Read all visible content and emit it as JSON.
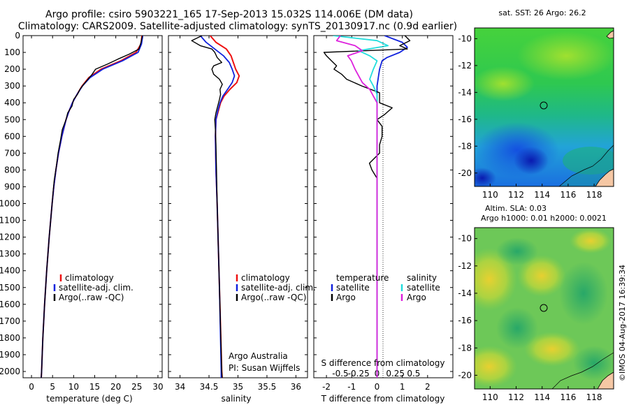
{
  "header": {
    "line1": "Argo profile: csiro 5903221_165 17-Sep-2013 15.032S 114.006E (DM data)",
    "line2": "Climatology: CARS2009. Satellite-adjusted climatology: synTS_20130917.nc (0.9d earlier)"
  },
  "colors": {
    "climatology": "#ee1111",
    "satellite": "#1122dd",
    "argo": "#000000",
    "argo_salinity": "#dd22dd",
    "satellite_salinity": "#22dddd",
    "land": "#f5c7a4"
  },
  "chart_data": [
    {
      "type": "line",
      "title": "Temperature profile",
      "xlabel": "temperature (deg C)",
      "ylabel": "",
      "xlim": [
        -2,
        31
      ],
      "ylim": [
        0,
        2080
      ],
      "xticks": [
        "0",
        "5",
        "10",
        "15",
        "20",
        "25",
        "30"
      ],
      "yticks": [
        "0",
        "100",
        "200",
        "300",
        "400",
        "500",
        "600",
        "700",
        "800",
        "900",
        "1000",
        "1100",
        "1200",
        "1300",
        "1400",
        "1500",
        "1600",
        "1700",
        "1800",
        "1900",
        "2000"
      ],
      "legend": {
        "entries": [
          "climatology",
          "satellite-adj. clim.",
          "Argo(..raw -QC)"
        ],
        "placement": "lower-center"
      },
      "series": [
        {
          "name": "climatology",
          "depth": [
            0,
            50,
            100,
            150,
            200,
            250,
            300,
            350,
            400,
            450,
            500,
            600,
            700,
            800,
            900,
            1000,
            1200,
            1400,
            1600,
            1800,
            2000,
            2050
          ],
          "values": [
            26.2,
            26.0,
            24.8,
            21.2,
            16.5,
            13.6,
            12.0,
            10.8,
            9.7,
            8.9,
            8.2,
            7.2,
            6.4,
            5.8,
            5.3,
            4.9,
            4.2,
            3.6,
            3.1,
            2.7,
            2.4,
            2.3
          ]
        },
        {
          "name": "satellite-adj. clim.",
          "depth": [
            0,
            50,
            100,
            150,
            200,
            250,
            300,
            350,
            400,
            450,
            500,
            600,
            700,
            800,
            900,
            1000,
            1200,
            1400,
            1600,
            1800,
            2000,
            2050
          ],
          "values": [
            26.4,
            26.1,
            25.3,
            21.6,
            16.9,
            13.9,
            12.1,
            10.8,
            9.7,
            8.9,
            8.2,
            7.2,
            6.4,
            5.8,
            5.3,
            4.9,
            4.2,
            3.6,
            3.1,
            2.7,
            2.4,
            2.3
          ]
        },
        {
          "name": "Argo(..raw -QC)",
          "depth": [
            0,
            40,
            80,
            110,
            140,
            170,
            200,
            230,
            260,
            290,
            320,
            350,
            380,
            420,
            460,
            500,
            560,
            620,
            700,
            780,
            860,
            940,
            1000,
            1200,
            1400,
            1600,
            1800,
            2000,
            2050
          ],
          "values": [
            26.3,
            26.0,
            25.5,
            23.2,
            20.5,
            18.0,
            15.2,
            14.4,
            13.4,
            12.4,
            11.5,
            10.9,
            10.0,
            9.6,
            8.6,
            8.2,
            7.3,
            6.9,
            6.3,
            5.9,
            5.4,
            5.1,
            4.9,
            4.2,
            3.6,
            3.1,
            2.7,
            2.4,
            2.3
          ]
        }
      ]
    },
    {
      "type": "line",
      "title": "Salinity profile",
      "xlabel": "salinity",
      "xlim": [
        33.8,
        36.2
      ],
      "ylim": [
        0,
        2080
      ],
      "xticks": [
        "34",
        "34.5",
        "35",
        "35.5",
        "36"
      ],
      "legend": {
        "entries": [
          "climatology",
          "satellite-adj. clim.",
          "Argo(..raw -QC)"
        ],
        "placement": "lower-center"
      },
      "annotation": [
        "Argo Australia",
        "PI: Susan Wijffels"
      ],
      "series": [
        {
          "name": "climatology",
          "depth": [
            0,
            40,
            80,
            120,
            160,
            200,
            240,
            280,
            320,
            360,
            400,
            450,
            500,
            600,
            800,
            1000,
            1500,
            2000,
            2050
          ],
          "values": [
            34.52,
            34.62,
            34.8,
            34.88,
            34.92,
            34.96,
            35.02,
            34.98,
            34.86,
            34.76,
            34.7,
            34.66,
            34.62,
            34.61,
            34.62,
            34.64,
            34.68,
            34.72,
            34.73
          ]
        },
        {
          "name": "satellite-adj. clim.",
          "depth": [
            0,
            40,
            80,
            120,
            160,
            200,
            240,
            280,
            320,
            360,
            400,
            450,
            500,
            600,
            800,
            1000,
            1500,
            2000,
            2050
          ],
          "values": [
            34.35,
            34.45,
            34.6,
            34.75,
            34.85,
            34.9,
            34.94,
            34.9,
            34.82,
            34.74,
            34.69,
            34.65,
            34.62,
            34.61,
            34.62,
            34.64,
            34.68,
            34.71,
            34.71
          ]
        },
        {
          "name": "Argo(..raw -QC)",
          "depth": [
            0,
            30,
            60,
            80,
            100,
            130,
            160,
            180,
            200,
            230,
            260,
            290,
            320,
            350,
            380,
            420,
            460,
            500,
            560,
            650,
            800,
            1000,
            1500,
            2000,
            2050
          ],
          "values": [
            34.38,
            34.2,
            34.35,
            34.55,
            34.6,
            34.64,
            34.72,
            34.58,
            34.55,
            34.58,
            34.68,
            34.73,
            34.69,
            34.7,
            34.68,
            34.65,
            34.62,
            34.6,
            34.61,
            34.62,
            34.63,
            34.64,
            34.68,
            34.72,
            34.73
          ]
        }
      ]
    },
    {
      "type": "line",
      "title": "Differences from climatology",
      "xlabel": "T difference from climatology",
      "xlabel_top": "S difference from climatology",
      "xlim": [
        -2.5,
        3.0
      ],
      "ylim": [
        0,
        2080
      ],
      "xticks": [
        "-2",
        "-1",
        "0",
        "1",
        "2"
      ],
      "sticks": [
        "-0.5",
        "-0.25",
        "0",
        "0.25",
        "0.5"
      ],
      "legend": {
        "temperature_title": "temperature",
        "salinity_title": "salinity",
        "temperature_entries": [
          "satellite",
          "Argo"
        ],
        "salinity_entries": [
          "satellite",
          "Argo"
        ],
        "placement": "center"
      },
      "series": [
        {
          "name": "temperature satellite",
          "depth": [
            0,
            40,
            70,
            100,
            130,
            150,
            200,
            250,
            300,
            350,
            400,
            500,
            600,
            800,
            1000,
            1500,
            2000,
            2050
          ],
          "values": [
            0.3,
            1.0,
            1.2,
            0.9,
            0.4,
            0.2,
            0.1,
            0.05,
            0.0,
            0.0,
            0.0,
            0.0,
            0.0,
            0.0,
            0.0,
            0.0,
            0.0,
            0.0
          ]
        },
        {
          "name": "temperature Argo",
          "depth": [
            0,
            30,
            60,
            80,
            100,
            120,
            150,
            180,
            200,
            230,
            260,
            300,
            340,
            400,
            430,
            470,
            500,
            540,
            600,
            650,
            700,
            760,
            800,
            850,
            900,
            1000,
            1200,
            1500,
            2000,
            2050
          ],
          "values": [
            1.1,
            1.3,
            0.9,
            1.2,
            -2.1,
            -2.0,
            -1.8,
            -1.6,
            -1.7,
            -1.4,
            -1.2,
            -0.6,
            0.1,
            0.1,
            0.6,
            0.3,
            0.0,
            0.2,
            0.2,
            0.1,
            0.1,
            -0.3,
            -0.2,
            0.0,
            0.0,
            0.0,
            0.0,
            0.0,
            0.0,
            0.0
          ]
        },
        {
          "name": "salinity satellite",
          "depth": [
            0,
            30,
            60,
            90,
            120,
            150,
            200,
            260,
            300,
            350,
            400,
            500,
            700,
            1000,
            1500,
            2000,
            2050
          ],
          "values": [
            -0.6,
            0.0,
            0.15,
            -0.25,
            -0.1,
            0.0,
            -0.05,
            -0.1,
            -0.05,
            0.0,
            0.0,
            0.0,
            0.0,
            0.0,
            0.0,
            0.0,
            0.0
          ]
        },
        {
          "name": "salinity Argo",
          "depth": [
            0,
            30,
            60,
            90,
            120,
            150,
            200,
            240,
            280,
            320,
            360,
            400,
            500,
            700,
            1000,
            1500,
            2000,
            2050
          ],
          "values": [
            -0.5,
            -0.55,
            -0.3,
            -0.2,
            -0.4,
            -0.35,
            -0.3,
            -0.25,
            -0.2,
            -0.1,
            -0.05,
            0.0,
            0.0,
            0.0,
            0.0,
            0.0,
            0.0,
            0.0
          ]
        }
      ]
    },
    {
      "type": "heatmap",
      "title": "sat. SST: 26  Argo: 26.2",
      "xlim": [
        108.8,
        119.5
      ],
      "ylim": [
        -21,
        -9.2
      ],
      "xticks": [
        "110",
        "112",
        "114",
        "116",
        "118"
      ],
      "yticks": [
        "-10",
        "-12",
        "-14",
        "-16",
        "-18",
        "-20"
      ],
      "marker": {
        "lon": 114.006,
        "lat": -15.032
      }
    },
    {
      "type": "heatmap",
      "title_line1": "Altim. SLA: 0.03",
      "title_line2": "Argo h1000: 0.01  h2000: 0.0021",
      "xlim": [
        108.8,
        119.5
      ],
      "ylim": [
        -21,
        -9.2
      ],
      "xticks": [
        "110",
        "112",
        "114",
        "116",
        "118"
      ],
      "yticks": [
        "-10",
        "-12",
        "-14",
        "-16",
        "-18",
        "-20"
      ],
      "marker": {
        "lon": 114.006,
        "lat": -15.032
      }
    }
  ],
  "watermark": "©IMOS 04-Aug-2017 16:39:34"
}
